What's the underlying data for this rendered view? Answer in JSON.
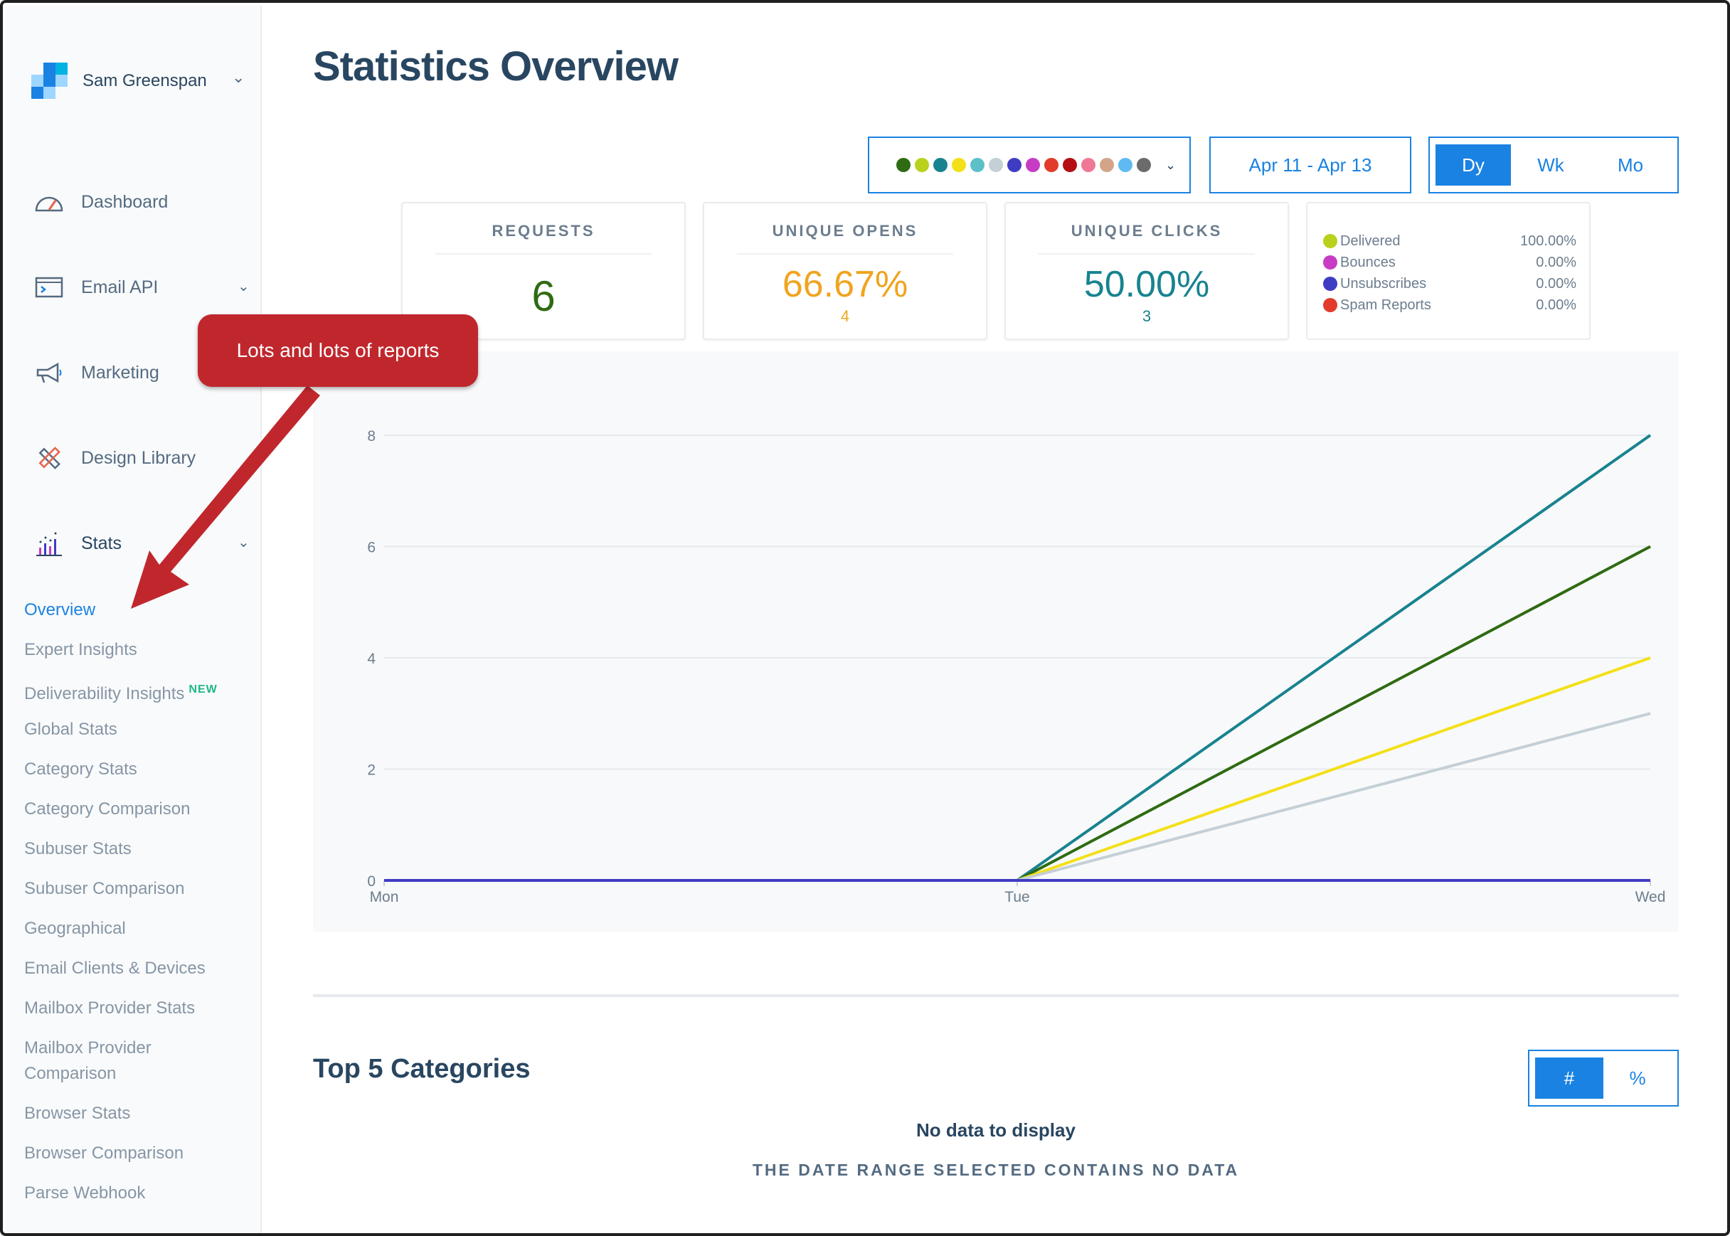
{
  "account": {
    "name": "Sam Greenspan"
  },
  "nav": {
    "items": [
      {
        "label": "Dashboard",
        "icon": "gauge-icon"
      },
      {
        "label": "Email API",
        "icon": "terminal-icon"
      },
      {
        "label": "Marketing",
        "icon": "megaphone-icon"
      },
      {
        "label": "Design Library",
        "icon": "pencil-ruler-icon"
      },
      {
        "label": "Stats",
        "icon": "bar-chart-icon"
      }
    ],
    "stats_subitems": [
      "Overview",
      "Expert Insights",
      "Deliverability Insights",
      "Global Stats",
      "Category Stats",
      "Category Comparison",
      "Subuser Stats",
      "Subuser Comparison",
      "Geographical",
      "Email Clients & Devices",
      "Mailbox Provider Stats",
      "Mailbox Provider Comparison",
      "Browser Stats",
      "Browser Comparison",
      "Parse Webhook"
    ],
    "new_badge": "NEW",
    "active": "Overview"
  },
  "page": {
    "title": "Statistics Overview"
  },
  "controls": {
    "series_colors": [
      "#2f6b12",
      "#b9d11c",
      "#18838f",
      "#f3e018",
      "#5dc0c8",
      "#c4cfd6",
      "#3f3cc4",
      "#c63dc4",
      "#e23b2c",
      "#b40f14",
      "#ef7896",
      "#d2a589",
      "#5fbaf1",
      "#6b6b6b"
    ],
    "date_range": "Apr 11 - Apr 13",
    "period": {
      "options": [
        "Dy",
        "Wk",
        "Mo"
      ],
      "selected": "Dy"
    }
  },
  "cards": {
    "requests": {
      "title": "REQUESTS",
      "value": "6",
      "color": "#2f6b12"
    },
    "opens": {
      "title": "UNIQUE OPENS",
      "value": "66.67%",
      "sub": "4",
      "color": "#f0a41e"
    },
    "clicks": {
      "title": "UNIQUE CLICKS",
      "value": "50.00%",
      "sub": "3",
      "color": "#18838f"
    }
  },
  "legend": [
    {
      "label": "Delivered",
      "value": "100.00%",
      "color": "#b9d11c"
    },
    {
      "label": "Bounces",
      "value": "0.00%",
      "color": "#c63dc4"
    },
    {
      "label": "Unsubscribes",
      "value": "0.00%",
      "color": "#3f3cc4"
    },
    {
      "label": "Spam Reports",
      "value": "0.00%",
      "color": "#e23b2c"
    }
  ],
  "chart_data": {
    "type": "line",
    "categories": [
      "Mon",
      "Tue",
      "Wed"
    ],
    "ylim": [
      0,
      8
    ],
    "yticks": [
      "0",
      "2",
      "4",
      "6",
      "8"
    ],
    "series": [
      {
        "color": "#18838f",
        "values": [
          0,
          0,
          8
        ]
      },
      {
        "color": "#2f6b12",
        "values": [
          0,
          0,
          6
        ]
      },
      {
        "color": "#f3e018",
        "values": [
          0,
          0,
          4
        ]
      },
      {
        "color": "#c4cfd6",
        "values": [
          0,
          0,
          3
        ]
      },
      {
        "color": "#3f3cc4",
        "values": [
          0,
          0,
          0
        ]
      }
    ],
    "grid": true
  },
  "categories_section": {
    "title": "Top 5 Categories",
    "toggle": {
      "options": [
        "#",
        "%"
      ],
      "selected": "#"
    },
    "empty_title": "No data to display",
    "empty_sub": "THE DATE RANGE SELECTED CONTAINS NO DATA"
  },
  "annotation": {
    "text": "Lots and lots of reports"
  }
}
